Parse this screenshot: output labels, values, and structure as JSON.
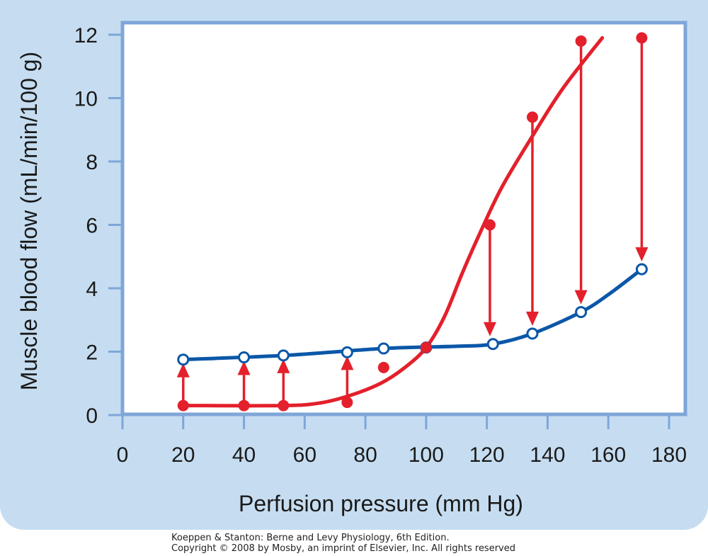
{
  "chart_data": {
    "type": "line",
    "xlabel": "Perfusion pressure (mm Hg)",
    "ylabel": "Muscle blood flow (mL/min/100 g)",
    "xlim": [
      0,
      180
    ],
    "ylim": [
      0,
      12
    ],
    "xticks": [
      0,
      20,
      40,
      60,
      80,
      100,
      120,
      140,
      160,
      180
    ],
    "yticks": [
      0,
      2,
      4,
      6,
      8,
      10,
      12
    ],
    "grid": false,
    "colors": {
      "red": "#e3202b",
      "blue": "#0b57a8",
      "frame": "#7ea6d8"
    },
    "series": [
      {
        "color": "#0b57a8",
        "marker": "open-circle",
        "x": [
          20,
          40,
          53,
          74,
          86,
          100,
          122,
          135,
          151,
          171
        ],
        "y": [
          1.75,
          1.82,
          1.88,
          1.98,
          2.1,
          2.13,
          2.24,
          2.57,
          3.25,
          4.6
        ]
      },
      {
        "color": "#e3202b",
        "marker": "filled-circle",
        "x": [
          20,
          40,
          53,
          74,
          86,
          100,
          121,
          135,
          151,
          171
        ],
        "y": [
          0.3,
          0.3,
          0.3,
          0.4,
          1.5,
          2.13,
          6.0,
          9.4,
          11.8,
          11.9
        ]
      }
    ],
    "curves": [
      {
        "color": "#0b57a8",
        "x": [
          20,
          53,
          86,
          110,
          122,
          135,
          151,
          160,
          171
        ],
        "y": [
          1.75,
          1.88,
          2.1,
          2.17,
          2.24,
          2.57,
          3.25,
          3.8,
          4.6
        ]
      },
      {
        "color": "#e3202b",
        "x": [
          20,
          53,
          65,
          75,
          85,
          93,
          100,
          106,
          112,
          118,
          125,
          135,
          145,
          158
        ],
        "y": [
          0.3,
          0.3,
          0.38,
          0.62,
          1.0,
          1.5,
          2.13,
          3.1,
          4.5,
          5.8,
          7.2,
          8.8,
          10.3,
          11.9
        ]
      }
    ],
    "arrows": [
      {
        "x": 20,
        "from": 0.3,
        "to": 1.75,
        "color": "#e3202b"
      },
      {
        "x": 40,
        "from": 0.3,
        "to": 1.82,
        "color": "#e3202b"
      },
      {
        "x": 53,
        "from": 0.3,
        "to": 1.88,
        "color": "#e3202b"
      },
      {
        "x": 74,
        "from": 0.4,
        "to": 1.98,
        "color": "#e3202b"
      },
      {
        "x": 121,
        "from": 6.0,
        "to": 2.24,
        "color": "#e3202b"
      },
      {
        "x": 135,
        "from": 9.4,
        "to": 2.57,
        "color": "#e3202b"
      },
      {
        "x": 151,
        "from": 11.8,
        "to": 3.25,
        "color": "#e3202b"
      },
      {
        "x": 171,
        "from": 11.9,
        "to": 4.6,
        "color": "#e3202b"
      }
    ]
  },
  "credit": {
    "line1": "Koeppen & Stanton: Berne and Levy Physiology, 6th Edition.",
    "line2": "Copyright © 2008 by Mosby, an imprint of Elsevier, Inc. All rights reserved"
  }
}
